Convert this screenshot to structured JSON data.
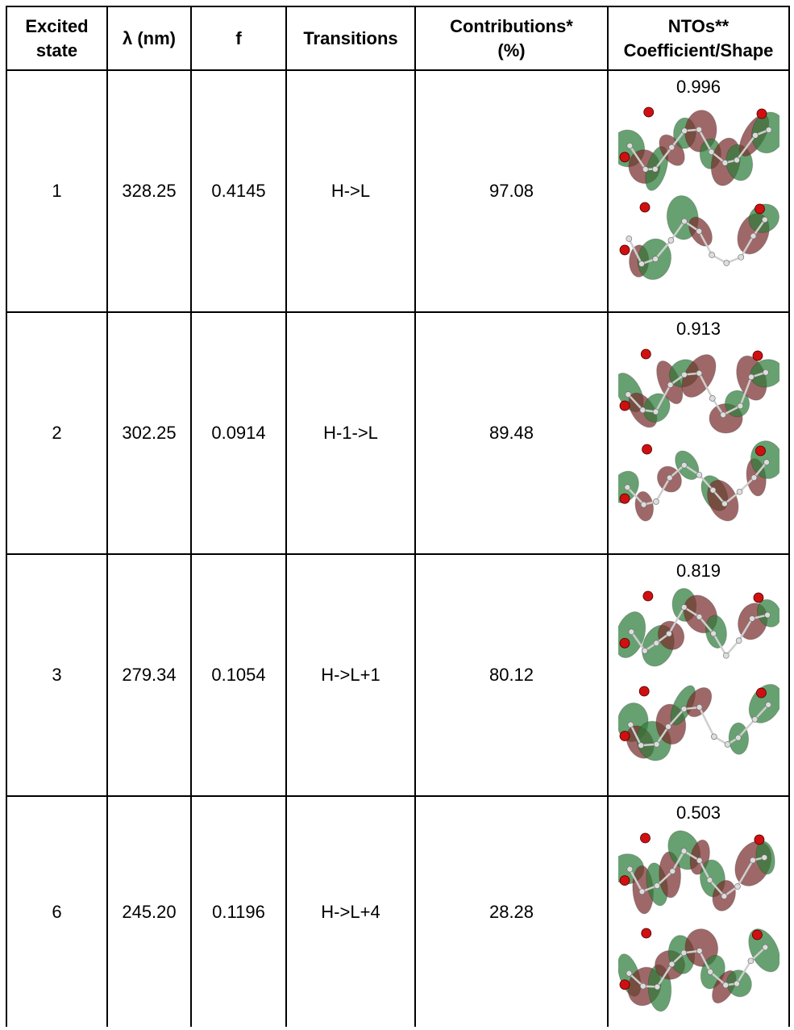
{
  "headers": {
    "state": [
      "Excited",
      "state"
    ],
    "lambda": "λ (nm)",
    "f": "f",
    "transitions": "Transitions",
    "contributions": [
      "Contributions*",
      "(%)"
    ],
    "ntos": [
      "NTOs**",
      "Coefficient/Shape"
    ]
  },
  "rows": [
    {
      "state": "1",
      "lambda": "328.25",
      "f": "0.4145",
      "transition": "H->L",
      "contribution": "97.08",
      "coefficient": "0.996"
    },
    {
      "state": "2",
      "lambda": "302.25",
      "f": "0.0914",
      "transition": "H-1->L",
      "contribution": "89.48",
      "coefficient": "0.913"
    },
    {
      "state": "3",
      "lambda": "279.34",
      "f": "0.1054",
      "transition": "H->L+1",
      "contribution": "80.12",
      "coefficient": "0.819"
    },
    {
      "state": "6",
      "lambda": "245.20",
      "f": "0.1196",
      "transition": "H->L+4",
      "contribution": "28.28",
      "coefficient": "0.503"
    }
  ],
  "colors": {
    "lobe_green": "#2e7d3a",
    "lobe_red": "#7a2e2e",
    "oxygen": "#d01010",
    "hydrogen": "#dddddd"
  }
}
